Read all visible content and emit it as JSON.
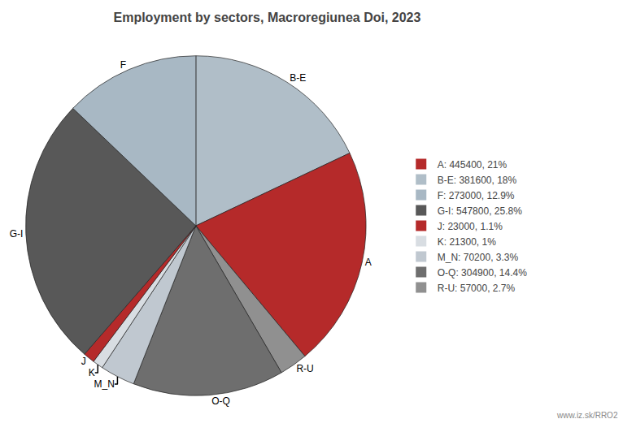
{
  "chart_data": {
    "type": "pie",
    "title": "Employment by sectors, Macroregiunea Doi, 2023",
    "categories": [
      "B-E",
      "A",
      "R-U",
      "O-Q",
      "M_N",
      "K",
      "J",
      "G-I",
      "F"
    ],
    "values": [
      381600,
      445400,
      57000,
      304900,
      70200,
      21300,
      23000,
      547800,
      273000
    ],
    "colors": [
      "#b0bec8",
      "#b52a2a",
      "#909090",
      "#6e6e6e",
      "#c0c8d0",
      "#d8dde2",
      "#b52a2a",
      "#585858",
      "#a8b8c4"
    ],
    "legend": "right",
    "legend_entries": [
      {
        "label": "A: 445400, 21%",
        "color": "#b52a2a"
      },
      {
        "label": "B-E: 381600, 18%",
        "color": "#b0bec8"
      },
      {
        "label": "F: 273000, 12.9%",
        "color": "#a8b8c4"
      },
      {
        "label": "G-I: 547800, 25.8%",
        "color": "#585858"
      },
      {
        "label": "J: 23000, 1.1%",
        "color": "#b52a2a"
      },
      {
        "label": "K: 21300, 1%",
        "color": "#d8dde2"
      },
      {
        "label": "M_N: 70200, 3.3%",
        "color": "#c0c8d0"
      },
      {
        "label": "O-Q: 304900, 14.4%",
        "color": "#6e6e6e"
      },
      {
        "label": "R-U: 57000, 2.7%",
        "color": "#909090"
      }
    ],
    "annotations": [
      "www.iz.sk/RRO2"
    ]
  }
}
